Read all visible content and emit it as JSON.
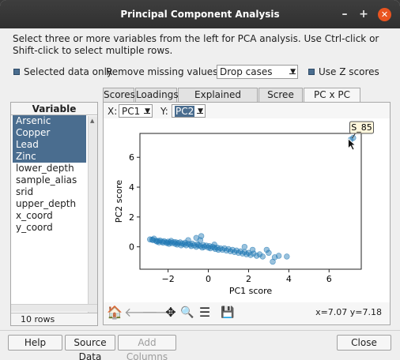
{
  "window": {
    "title": "Principal Component Analysis",
    "minimize_glyph": "–",
    "maximize_glyph": "+",
    "close_glyph": "✕"
  },
  "instructions": "Select three or more variables from the left for PCA analysis.  Use Ctrl-click or Shift-click to select multiple rows.",
  "options": {
    "selected_only_label": "Selected data only",
    "missing_label": "Remove missing values by:",
    "missing_value": "Drop cases",
    "zscores_label": "Use Z scores"
  },
  "variables": {
    "header": "Variable",
    "items": [
      {
        "name": "Arsenic",
        "selected": true
      },
      {
        "name": "Copper",
        "selected": true
      },
      {
        "name": "Lead",
        "selected": true
      },
      {
        "name": "Zinc",
        "selected": true
      },
      {
        "name": "lower_depth",
        "selected": false
      },
      {
        "name": "sample_alias",
        "selected": false
      },
      {
        "name": "srid",
        "selected": false
      },
      {
        "name": "upper_depth",
        "selected": false
      },
      {
        "name": "x_coord",
        "selected": false
      },
      {
        "name": "y_coord",
        "selected": false
      }
    ],
    "row_count": "10 rows"
  },
  "tabs": [
    "Scores",
    "Loadings",
    "Explained variance",
    "Scree plot",
    "PC x PC plots"
  ],
  "active_tab": 4,
  "axis_select": {
    "x_label": "X:",
    "x_value": "PC1",
    "y_label": "Y:",
    "y_value": "PC2"
  },
  "chart_data": {
    "type": "scatter",
    "xlabel": "PC1 score",
    "ylabel": "PC2 score",
    "xlim": [
      -3.4,
      7.6
    ],
    "ylim": [
      -1.5,
      7.6
    ],
    "xticks": [
      -2,
      0,
      2,
      4,
      6
    ],
    "yticks": [
      0,
      2,
      4,
      6
    ],
    "grid": false,
    "point_color": "#1f77b4",
    "annotation": {
      "label": "S_85",
      "x": 7.07,
      "y": 7.18
    },
    "points": [
      [
        -2.9,
        0.5
      ],
      [
        -2.8,
        0.48
      ],
      [
        -2.75,
        0.45
      ],
      [
        -2.6,
        0.4
      ],
      [
        -2.55,
        0.35
      ],
      [
        -2.5,
        0.4
      ],
      [
        -2.45,
        0.3
      ],
      [
        -2.4,
        0.42
      ],
      [
        -2.3,
        0.35
      ],
      [
        -2.25,
        0.28
      ],
      [
        -2.2,
        0.38
      ],
      [
        -2.1,
        0.3
      ],
      [
        -2.05,
        0.25
      ],
      [
        -2.0,
        0.35
      ],
      [
        -1.95,
        0.2
      ],
      [
        -1.9,
        0.3
      ],
      [
        -1.85,
        0.4
      ],
      [
        -1.8,
        0.25
      ],
      [
        -1.7,
        0.32
      ],
      [
        -1.65,
        0.2
      ],
      [
        -1.6,
        0.3
      ],
      [
        -1.55,
        0.15
      ],
      [
        -1.5,
        0.25
      ],
      [
        -1.4,
        0.3
      ],
      [
        -1.35,
        0.1
      ],
      [
        -1.3,
        0.22
      ],
      [
        -1.2,
        0.18
      ],
      [
        -1.15,
        0.28
      ],
      [
        -1.1,
        0.1
      ],
      [
        -1.0,
        0.2
      ],
      [
        -0.9,
        0.15
      ],
      [
        -0.85,
        0.05
      ],
      [
        -0.8,
        0.22
      ],
      [
        -0.7,
        0.1
      ],
      [
        -0.6,
        0.0
      ],
      [
        -0.55,
        0.18
      ],
      [
        -0.5,
        0.1
      ],
      [
        -0.4,
        0.05
      ],
      [
        -0.3,
        -0.05
      ],
      [
        -0.25,
        0.12
      ],
      [
        -0.2,
        0.0
      ],
      [
        -0.1,
        0.08
      ],
      [
        0.0,
        -0.05
      ],
      [
        0.05,
        0.05
      ],
      [
        0.1,
        -0.1
      ],
      [
        0.2,
        0.0
      ],
      [
        0.3,
        -0.05
      ],
      [
        0.35,
        -0.15
      ],
      [
        0.45,
        -0.05
      ],
      [
        0.5,
        -0.2
      ],
      [
        0.6,
        -0.1
      ],
      [
        0.7,
        -0.2
      ],
      [
        0.8,
        -0.1
      ],
      [
        0.9,
        -0.25
      ],
      [
        1.0,
        -0.15
      ],
      [
        1.1,
        -0.3
      ],
      [
        1.2,
        -0.2
      ],
      [
        1.3,
        -0.35
      ],
      [
        1.4,
        -0.25
      ],
      [
        1.5,
        -0.4
      ],
      [
        1.6,
        -0.3
      ],
      [
        1.7,
        -0.45
      ],
      [
        1.8,
        -0.35
      ],
      [
        1.9,
        -0.5
      ],
      [
        2.0,
        -0.4
      ],
      [
        2.1,
        -0.55
      ],
      [
        2.25,
        -0.45
      ],
      [
        2.4,
        -0.6
      ],
      [
        2.55,
        -0.5
      ],
      [
        2.7,
        -0.65
      ],
      [
        3.0,
        -0.4
      ],
      [
        3.3,
        -0.7
      ],
      [
        3.5,
        -0.6
      ],
      [
        3.9,
        -0.65
      ],
      [
        -0.4,
        0.45
      ],
      [
        -1.0,
        0.45
      ],
      [
        -2.7,
        0.55
      ],
      [
        -0.6,
        0.6
      ],
      [
        -0.35,
        0.72
      ],
      [
        0.3,
        0.15
      ],
      [
        1.8,
        0.0
      ],
      [
        2.2,
        -0.2
      ],
      [
        2.9,
        -0.2
      ],
      [
        3.2,
        -1.0
      ],
      [
        7.07,
        7.18
      ],
      [
        7.2,
        7.3
      ]
    ]
  },
  "toolbar": {
    "coord_readout": "x=7.07 y=7.18",
    "home_glyph": "🏠",
    "back_glyph": "🡐",
    "forward_glyph": "🡒",
    "pan_glyph": "✥",
    "zoom_glyph": "🔍",
    "configure_glyph": "☰",
    "save_glyph": "💾"
  },
  "buttons": {
    "help": "Help",
    "source_data": "Source Data",
    "add_columns": "Add Columns",
    "close": "Close"
  }
}
